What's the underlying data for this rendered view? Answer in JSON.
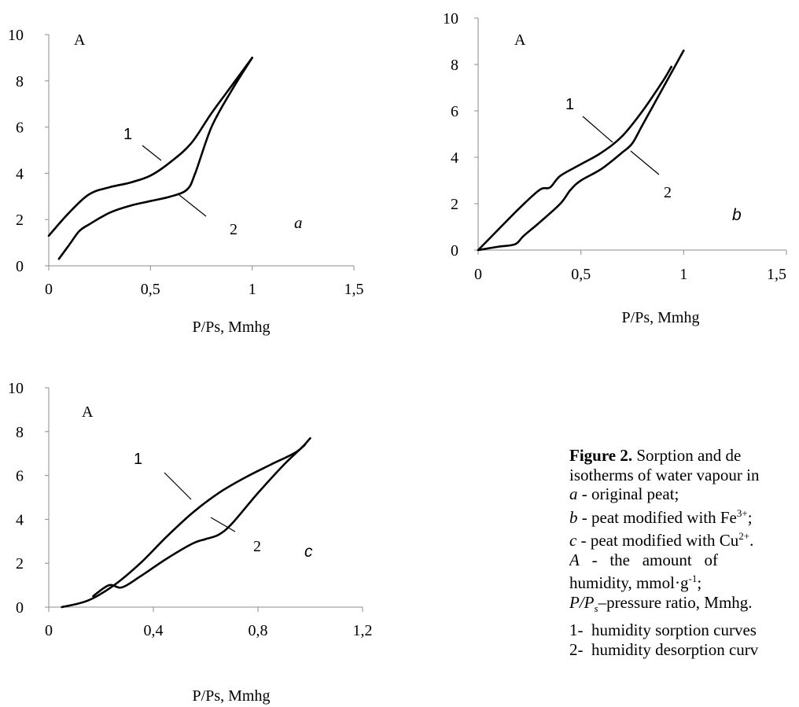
{
  "chart_data": [
    {
      "type": "line",
      "panel_letter": "a",
      "corner_label": "A",
      "xlabel": "P/Ps, Mmhg",
      "xlim": [
        0,
        1.5
      ],
      "ylim": [
        0,
        10
      ],
      "xticks": [
        "0",
        "0,5",
        "1",
        "1,5"
      ],
      "yticks": [
        "0",
        "2",
        "4",
        "6",
        "8",
        "10"
      ],
      "grid": false,
      "series": [
        {
          "name": "1",
          "x": [
            0.0,
            0.1,
            0.2,
            0.3,
            0.4,
            0.5,
            0.6,
            0.7,
            0.8,
            0.9,
            1.0
          ],
          "y": [
            1.3,
            2.3,
            3.1,
            3.4,
            3.6,
            3.9,
            4.5,
            5.3,
            6.6,
            7.8,
            9.0
          ]
        },
        {
          "name": "2",
          "x": [
            0.05,
            0.1,
            0.15,
            0.2,
            0.3,
            0.4,
            0.5,
            0.6,
            0.68,
            0.72,
            0.8,
            0.9,
            1.0
          ],
          "y": [
            0.3,
            0.9,
            1.5,
            1.8,
            2.3,
            2.6,
            2.8,
            3.0,
            3.3,
            4.0,
            6.0,
            7.6,
            9.0
          ]
        }
      ]
    },
    {
      "type": "line",
      "panel_letter": "b",
      "corner_label": "A",
      "xlabel": "P/Ps, Mmhg",
      "xlim": [
        0,
        1.5
      ],
      "ylim": [
        0,
        10
      ],
      "xticks": [
        "0",
        "0,5",
        "1",
        "1,5"
      ],
      "yticks": [
        "0",
        "2",
        "4",
        "6",
        "8",
        "10"
      ],
      "grid": false,
      "series": [
        {
          "name": "1",
          "x": [
            0.0,
            0.1,
            0.2,
            0.3,
            0.35,
            0.4,
            0.5,
            0.6,
            0.7,
            0.8,
            0.9,
            0.94
          ],
          "y": [
            0.0,
            0.9,
            1.8,
            2.6,
            2.7,
            3.2,
            3.7,
            4.2,
            4.9,
            6.0,
            7.3,
            7.9
          ]
        },
        {
          "name": "2",
          "x": [
            0.0,
            0.1,
            0.18,
            0.22,
            0.3,
            0.4,
            0.45,
            0.5,
            0.6,
            0.7,
            0.75,
            0.8,
            0.9,
            1.0
          ],
          "y": [
            0.0,
            0.15,
            0.25,
            0.6,
            1.2,
            2.0,
            2.6,
            3.0,
            3.5,
            4.2,
            4.6,
            5.4,
            7.0,
            8.6
          ]
        }
      ]
    },
    {
      "type": "line",
      "panel_letter": "c",
      "corner_label": "A",
      "xlabel": "P/Ps, Mmhg",
      "xlim": [
        0,
        1.2
      ],
      "ylim": [
        0,
        10
      ],
      "xticks": [
        "0",
        "0,4",
        "0,8",
        "1,2"
      ],
      "yticks": [
        "0",
        "2",
        "4",
        "6",
        "8",
        "10"
      ],
      "grid": false,
      "series": [
        {
          "name": "1",
          "x": [
            0.05,
            0.15,
            0.25,
            0.35,
            0.45,
            0.55,
            0.65,
            0.75,
            0.85,
            0.95,
            1.0
          ],
          "y": [
            0.0,
            0.3,
            1.0,
            2.0,
            3.2,
            4.3,
            5.2,
            5.9,
            6.5,
            7.1,
            7.7
          ]
        },
        {
          "name": "2",
          "x": [
            0.17,
            0.23,
            0.28,
            0.35,
            0.45,
            0.55,
            0.6,
            0.65,
            0.7,
            0.8,
            0.9,
            0.98
          ],
          "y": [
            0.5,
            1.0,
            0.9,
            1.4,
            2.2,
            2.9,
            3.1,
            3.3,
            3.8,
            5.2,
            6.5,
            7.4
          ]
        }
      ]
    }
  ],
  "curve_labels": {
    "a": {
      "one": "1",
      "two": "2"
    },
    "b": {
      "one": "1",
      "two": "2"
    },
    "c": {
      "one": "1",
      "two": "2"
    }
  },
  "caption": {
    "title_bold": "Figure 2.",
    "title_rest": " Sorption and de",
    "line2": "isotherms of water vapour in",
    "item_a_key": "a",
    "item_a_text": " - original peat;",
    "item_b_key": "b",
    "item_b_text_pre": " - peat modified with Fe",
    "item_b_sup": "3+",
    "item_b_text_post": ";",
    "item_c_key": "c",
    "item_c_text_pre": " - peat modified with Cu",
    "item_c_sup": "2+",
    "item_c_text_post": ".",
    "item_A_key": "A",
    "item_A_text": "   -   the   amount   of",
    "item_A_text2_pre": "humidity, mmol·g",
    "item_A_sup": "-1",
    "item_A_text2_post": ";",
    "item_P_key": "P/P",
    "item_P_sub": "s",
    "item_P_text": "–pressure ratio, Mmhg.",
    "list_1": "1-  humidity sorption curves",
    "list_2": "2-  humidity desorption curv"
  }
}
